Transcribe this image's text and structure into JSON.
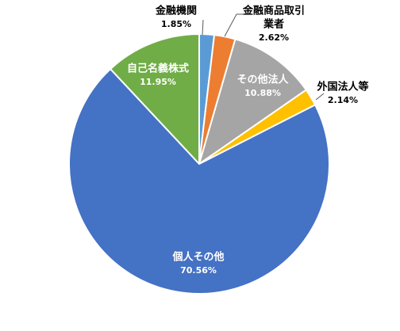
{
  "chart_data": {
    "type": "pie",
    "start_angle_deg": 0,
    "direction": "clockwise",
    "slices": [
      {
        "name": "金融機関",
        "lines": [
          "金融機関"
        ],
        "value": 1.85,
        "label": "1.85%",
        "color": "#5B9BD5"
      },
      {
        "name": "金融商品取引業者",
        "lines": [
          "金融商品取引",
          "業者"
        ],
        "value": 2.62,
        "label": "2.62%",
        "color": "#ED7D31"
      },
      {
        "name": "その他法人",
        "lines": [
          "その他法人"
        ],
        "value": 10.88,
        "label": "10.88%",
        "color": "#A5A5A5"
      },
      {
        "name": "外国法人等",
        "lines": [
          "外国法人等"
        ],
        "value": 2.14,
        "label": "2.14%",
        "color": "#FFC000"
      },
      {
        "name": "個人その他",
        "lines": [
          "個人その他"
        ],
        "value": 70.56,
        "label": "70.56%",
        "color": "#4472C4"
      },
      {
        "name": "自己名義株式",
        "lines": [
          "自己名義株式"
        ],
        "value": 11.95,
        "label": "11.95%",
        "color": "#70AD47"
      }
    ]
  }
}
